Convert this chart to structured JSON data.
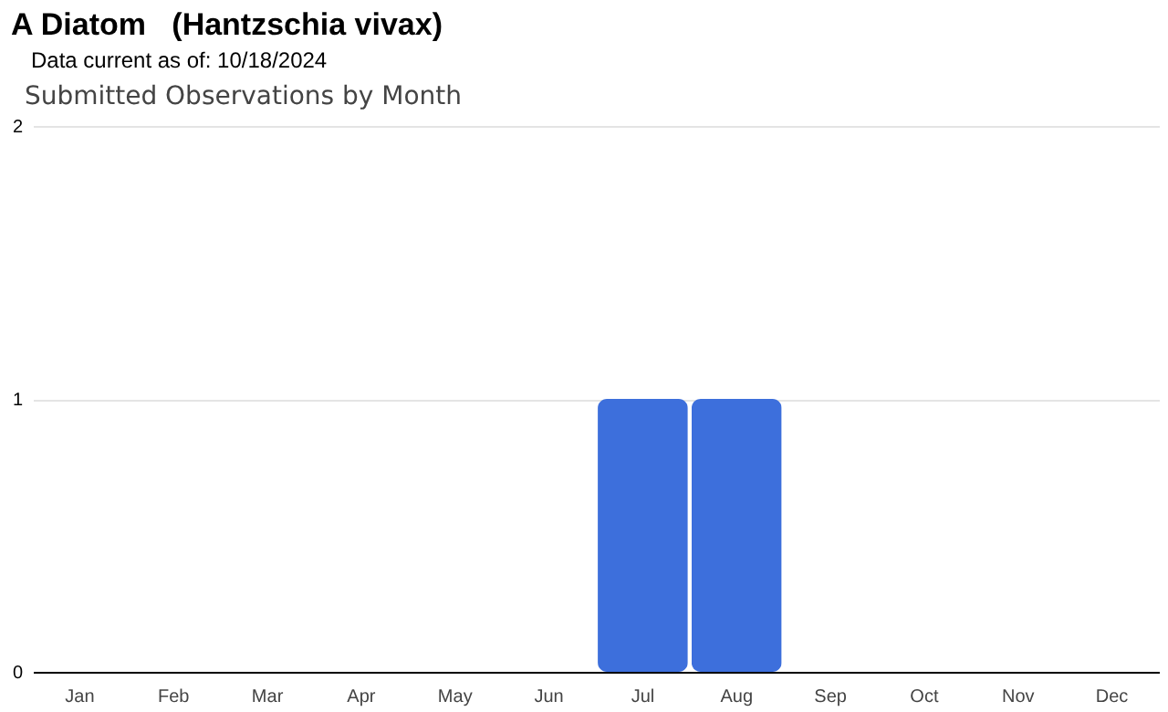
{
  "chart_data": {
    "type": "bar",
    "title": "A Diatom   (Hantzschia vivax)",
    "subtitle": "Data current as of: 10/18/2024",
    "annotations": [
      "Submitted Observations by Month"
    ],
    "categories": [
      "Jan",
      "Feb",
      "Mar",
      "Apr",
      "May",
      "Jun",
      "Jul",
      "Aug",
      "Sep",
      "Oct",
      "Nov",
      "Dec"
    ],
    "values": [
      0,
      0,
      0,
      0,
      0,
      0,
      1,
      1,
      0,
      0,
      0,
      0
    ],
    "color": "#3d6fdc",
    "ylim": [
      0,
      2
    ],
    "yticks": [
      0,
      1,
      2
    ],
    "grid": "y"
  }
}
